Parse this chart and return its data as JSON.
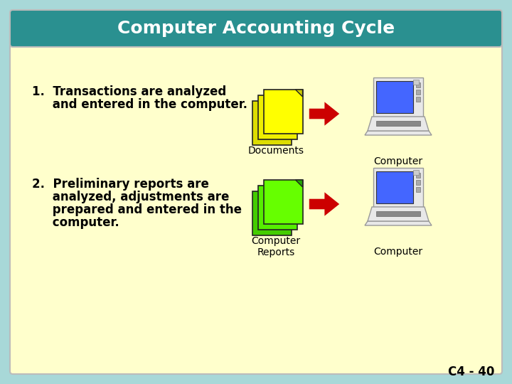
{
  "title": "Computer Accounting Cycle",
  "title_bg": "#2a9090",
  "title_color": "#ffffff",
  "slide_bg": "#a8d8d8",
  "content_bg": "#ffffcc",
  "step1_line1": "1.  Transactions are analyzed",
  "step1_line2": "     and entered in the computer.",
  "step2_line1": "2.  Preliminary reports are",
  "step2_line2": "     analyzed, adjustments are",
  "step2_line3": "     prepared and entered in the",
  "step2_line4": "     computer.",
  "doc1_label": "Documents",
  "doc2_label": "Computer\nReports",
  "computer1_label": "Computer",
  "computer2_label": "Computer",
  "footer": "C4 - 40",
  "arrow_color": "#cc0000",
  "text_color": "#000000",
  "doc1_colors": [
    "#ffff00",
    "#eeee00",
    "#dddd00"
  ],
  "doc2_colors": [
    "#66ff00",
    "#55ee00",
    "#44cc00"
  ],
  "computer_screen_color": "#4466ff",
  "computer_body_color": "#e8e8e8",
  "computer_border_color": "#999999",
  "computer_drive_color": "#888888"
}
